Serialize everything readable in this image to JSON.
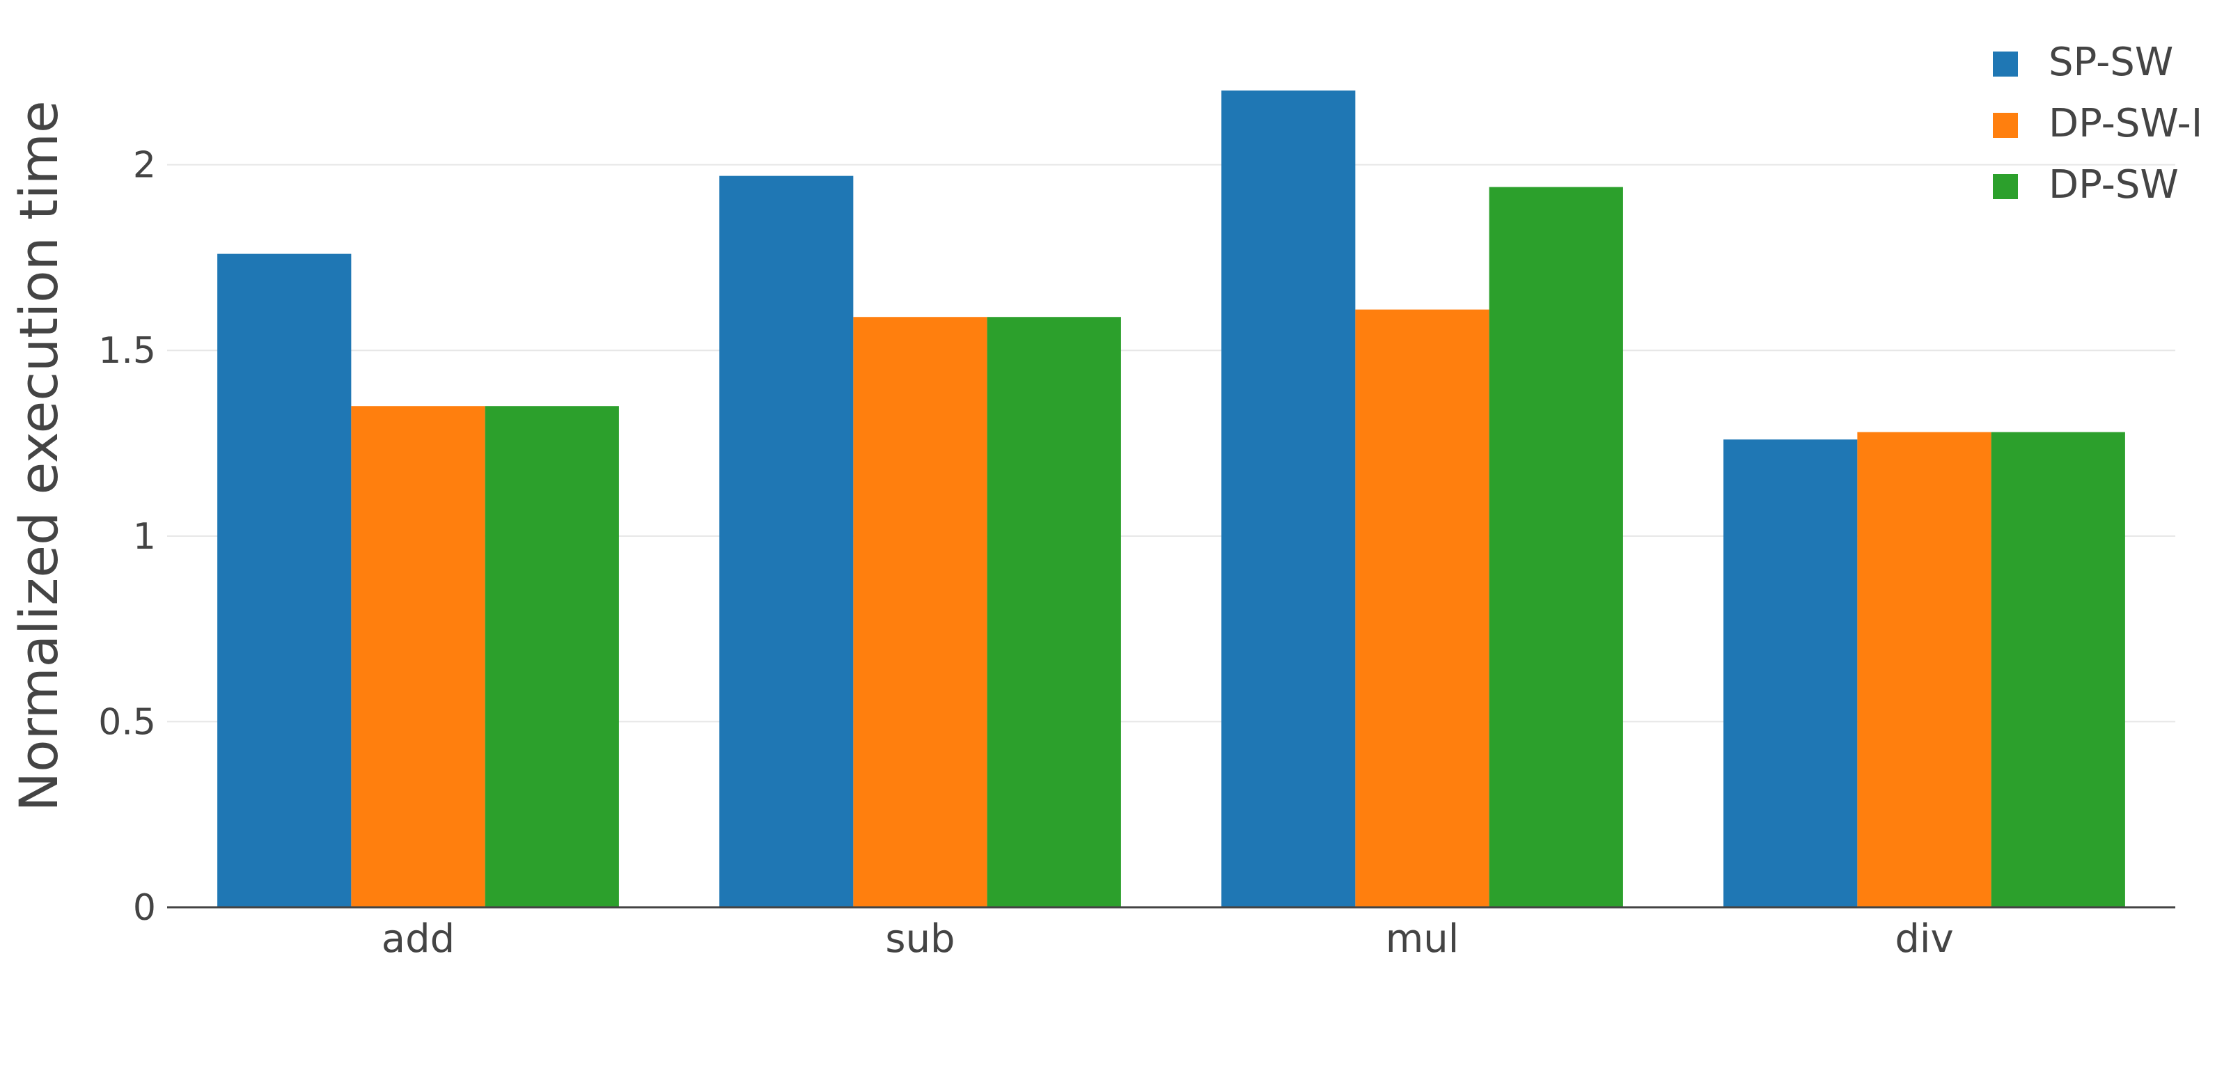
{
  "chart_data": {
    "type": "bar",
    "title": "",
    "xlabel": "",
    "ylabel": "Normalized execution time",
    "categories": [
      "add",
      "sub",
      "mul",
      "div"
    ],
    "series": [
      {
        "name": "SP-SW",
        "color": "#1f77b4",
        "values": [
          1.76,
          1.97,
          2.2,
          1.26
        ]
      },
      {
        "name": "DP-SW-I",
        "color": "#ff7f0e",
        "values": [
          1.35,
          1.59,
          1.61,
          1.28
        ]
      },
      {
        "name": "DP-SW",
        "color": "#2ca02c",
        "values": [
          1.35,
          1.59,
          1.94,
          1.28
        ]
      }
    ],
    "ylim": [
      0,
      2.2
    ],
    "yticks": [
      0,
      0.5,
      1,
      1.5,
      2
    ],
    "ytick_labels": [
      "0",
      "0.5",
      "1",
      "1.5",
      "2"
    ],
    "grid": true,
    "legend_position": "top-right"
  }
}
